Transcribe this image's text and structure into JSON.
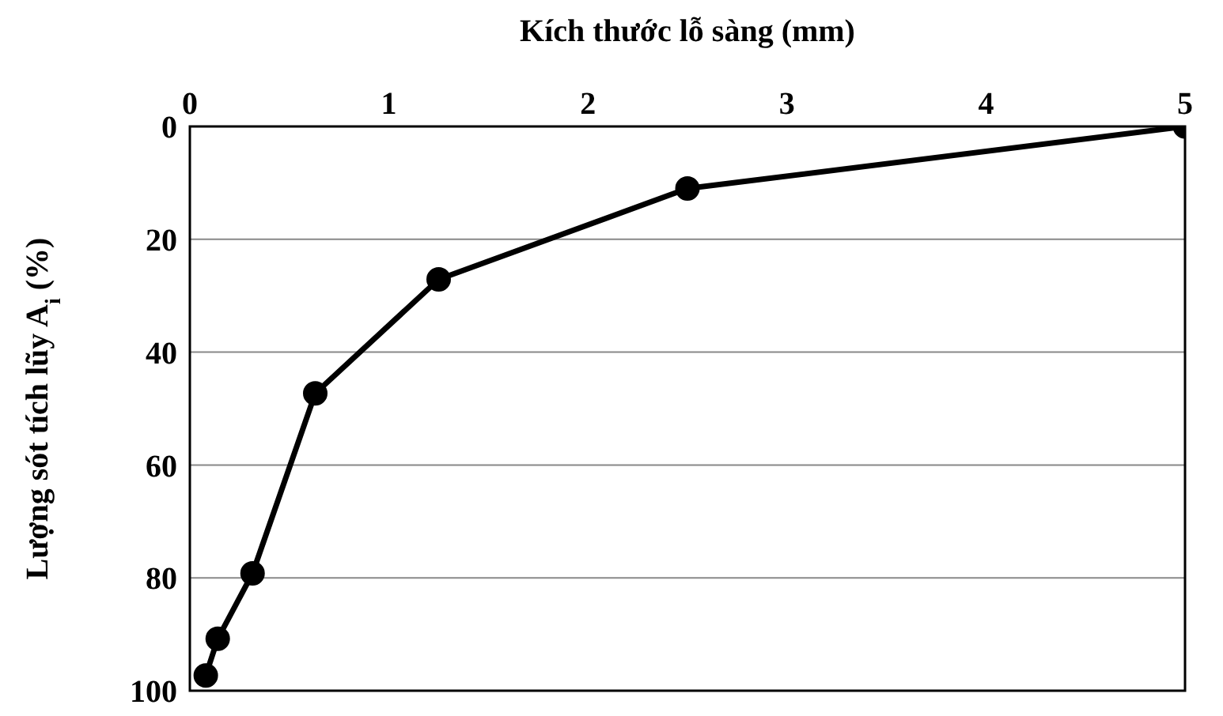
{
  "chart_data": {
    "type": "line",
    "xlabel": "Kích thước lỗ sàng (mm)",
    "ylabel": "Lượng sót tích lũy A$_{i}$ (%)",
    "x": [
      0.08,
      0.14,
      0.315,
      0.63,
      1.25,
      2.5,
      5
    ],
    "series": [
      {
        "color": "#000000",
        "values": [
          97.3,
          90.8,
          79.2,
          47.3,
          27.1,
          11.0,
          0
        ]
      }
    ],
    "xlim": [
      0,
      5
    ],
    "xticks": [
      0,
      1,
      2,
      3,
      4,
      5
    ],
    "ylim": [
      100,
      0
    ],
    "yticks": [
      0,
      20,
      40,
      60,
      80,
      100
    ],
    "grid": "y",
    "marker": "circle",
    "line_style": "solid"
  }
}
